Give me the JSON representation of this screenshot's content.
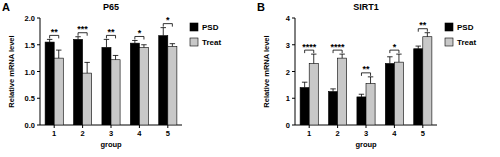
{
  "chart_data": [
    {
      "type": "bar",
      "panel_label": "A",
      "title": "P65",
      "x_label": "group",
      "y_label": "Relative mRNA level",
      "categories": [
        "1",
        "2",
        "3",
        "4",
        "5"
      ],
      "series": [
        {
          "name": "PSD",
          "color": "#000000",
          "values": [
            1.55,
            1.6,
            1.45,
            1.53,
            1.67
          ],
          "errors": [
            0.05,
            0.05,
            0.15,
            0.05,
            0.15
          ]
        },
        {
          "name": "Treat",
          "color": "#c8c8c8",
          "values": [
            1.25,
            0.97,
            1.22,
            1.45,
            1.47
          ],
          "errors": [
            0.15,
            0.2,
            0.08,
            0.05,
            0.05
          ]
        }
      ],
      "significance": [
        "**",
        "***",
        "**",
        "*",
        "*"
      ],
      "ylim": [
        0,
        2
      ],
      "yticks": [
        {
          "value": 0,
          "label": "0.0"
        },
        0.5,
        {
          "value": 1,
          "label": "1.0"
        },
        1.5,
        {
          "value": 2,
          "label": "2.0"
        }
      ],
      "legend": "right",
      "grid": false
    },
    {
      "type": "bar",
      "panel_label": "B",
      "title": "SIRT1",
      "x_label": "group",
      "y_label": "Relative mRNA level",
      "categories": [
        "1",
        "2",
        "3",
        "4",
        "5"
      ],
      "series": [
        {
          "name": "PSD",
          "color": "#000000",
          "values": [
            1.4,
            1.25,
            1.05,
            2.3,
            2.85
          ],
          "errors": [
            0.2,
            0.1,
            0.1,
            0.25,
            0.1
          ]
        },
        {
          "name": "Treat",
          "color": "#c8c8c8",
          "values": [
            2.3,
            2.5,
            1.55,
            2.35,
            3.3
          ],
          "errors": [
            0.35,
            0.15,
            0.25,
            0.3,
            0.15
          ]
        }
      ],
      "significance": [
        "****",
        "****",
        "**",
        "*",
        "**"
      ],
      "ylim": [
        0,
        4
      ],
      "yticks": [
        0,
        1,
        2,
        3,
        4
      ],
      "legend": "right",
      "grid": false
    }
  ]
}
